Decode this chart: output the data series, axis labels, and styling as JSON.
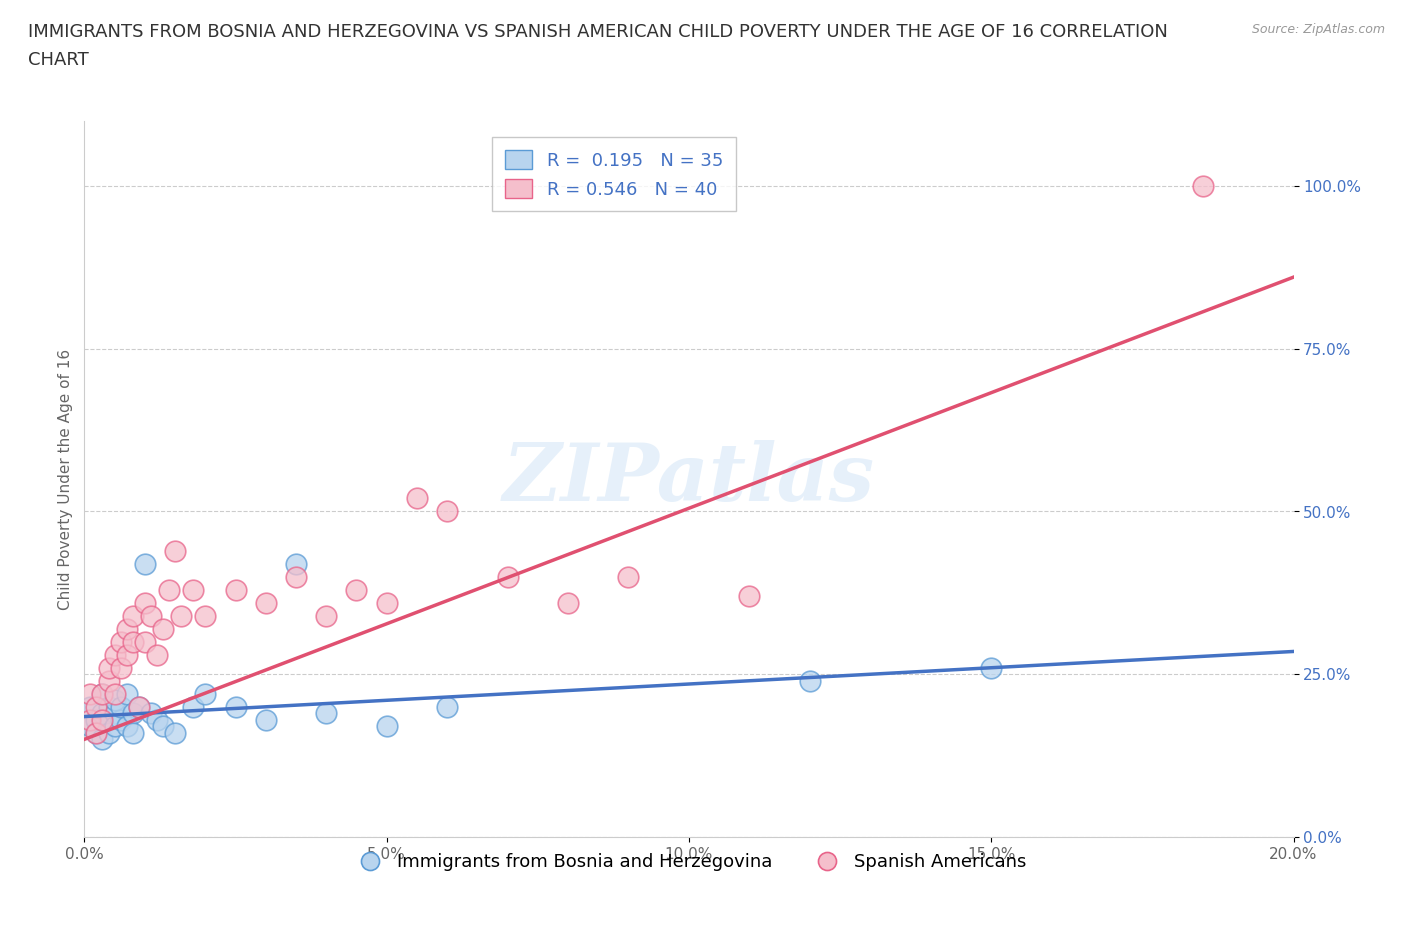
{
  "title_line1": "IMMIGRANTS FROM BOSNIA AND HERZEGOVINA VS SPANISH AMERICAN CHILD POVERTY UNDER THE AGE OF 16 CORRELATION",
  "title_line2": "CHART",
  "source": "Source: ZipAtlas.com",
  "ylabel": "Child Poverty Under the Age of 16",
  "xlim": [
    0.0,
    0.2
  ],
  "ylim": [
    0.0,
    1.1
  ],
  "xticks": [
    0.0,
    0.05,
    0.1,
    0.15,
    0.2
  ],
  "xticklabels": [
    "0.0%",
    "5.0%",
    "10.0%",
    "15.0%",
    "20.0%"
  ],
  "yticks": [
    0.0,
    0.25,
    0.5,
    0.75,
    1.0
  ],
  "yticklabels": [
    "0.0%",
    "25.0%",
    "50.0%",
    "75.0%",
    "100.0%"
  ],
  "blue_fill": "#b8d4ee",
  "pink_fill": "#f5bfcc",
  "blue_edge": "#5b9bd5",
  "pink_edge": "#e8648a",
  "blue_line": "#4472c4",
  "pink_line": "#e05070",
  "blue_R": 0.195,
  "blue_N": 35,
  "pink_R": 0.546,
  "pink_N": 40,
  "legend_label_blue": "Immigrants from Bosnia and Herzegovina",
  "legend_label_pink": "Spanish Americans",
  "watermark": "ZIPatlas",
  "background_color": "#ffffff",
  "blue_scatter_x": [
    0.001,
    0.001,
    0.002,
    0.002,
    0.003,
    0.003,
    0.003,
    0.004,
    0.004,
    0.004,
    0.005,
    0.005,
    0.005,
    0.006,
    0.006,
    0.007,
    0.007,
    0.008,
    0.008,
    0.009,
    0.01,
    0.011,
    0.012,
    0.013,
    0.015,
    0.018,
    0.02,
    0.025,
    0.03,
    0.035,
    0.04,
    0.05,
    0.06,
    0.12,
    0.15
  ],
  "blue_scatter_y": [
    0.17,
    0.2,
    0.18,
    0.16,
    0.19,
    0.22,
    0.15,
    0.18,
    0.2,
    0.16,
    0.19,
    0.17,
    0.21,
    0.18,
    0.2,
    0.17,
    0.22,
    0.19,
    0.16,
    0.2,
    0.42,
    0.19,
    0.18,
    0.17,
    0.16,
    0.2,
    0.22,
    0.2,
    0.18,
    0.42,
    0.19,
    0.17,
    0.2,
    0.24,
    0.26
  ],
  "pink_scatter_x": [
    0.001,
    0.001,
    0.002,
    0.002,
    0.003,
    0.003,
    0.004,
    0.004,
    0.005,
    0.005,
    0.006,
    0.006,
    0.007,
    0.007,
    0.008,
    0.008,
    0.009,
    0.01,
    0.01,
    0.011,
    0.012,
    0.013,
    0.014,
    0.015,
    0.016,
    0.018,
    0.02,
    0.025,
    0.03,
    0.035,
    0.04,
    0.045,
    0.05,
    0.055,
    0.06,
    0.07,
    0.08,
    0.09,
    0.11,
    0.185
  ],
  "pink_scatter_y": [
    0.18,
    0.22,
    0.2,
    0.16,
    0.22,
    0.18,
    0.24,
    0.26,
    0.22,
    0.28,
    0.3,
    0.26,
    0.32,
    0.28,
    0.34,
    0.3,
    0.2,
    0.36,
    0.3,
    0.34,
    0.28,
    0.32,
    0.38,
    0.44,
    0.34,
    0.38,
    0.34,
    0.38,
    0.36,
    0.4,
    0.34,
    0.38,
    0.36,
    0.52,
    0.5,
    0.4,
    0.36,
    0.4,
    0.37,
    1.0
  ],
  "blue_trend_x": [
    0.0,
    0.2
  ],
  "blue_trend_y": [
    0.185,
    0.285
  ],
  "pink_trend_x": [
    0.0,
    0.2
  ],
  "pink_trend_y": [
    0.15,
    0.86
  ],
  "title_fontsize": 13,
  "axis_label_fontsize": 11,
  "tick_fontsize": 11,
  "tick_color": "#4472c4",
  "legend_fontsize": 13,
  "legend_r_color": "#4472c4"
}
